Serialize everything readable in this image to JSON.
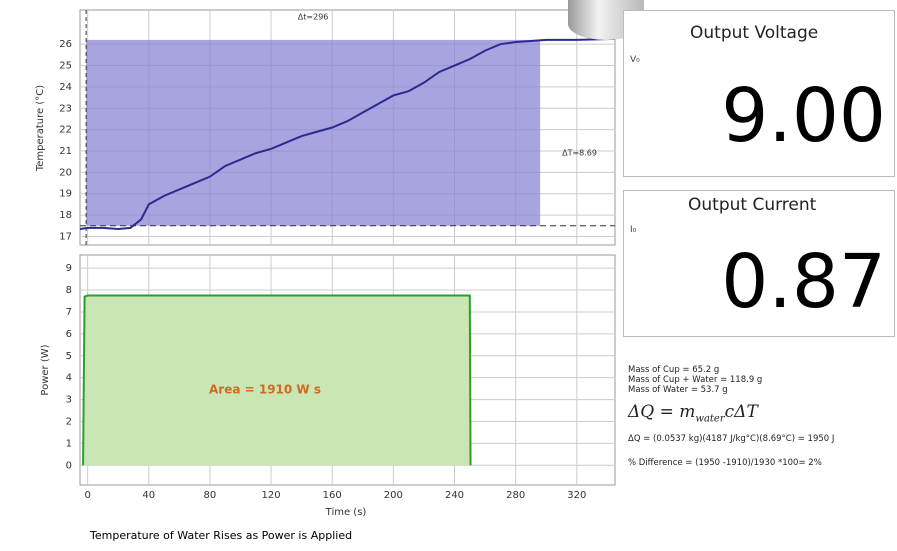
{
  "temperature_chart": {
    "type": "line",
    "y_label": "Temperature (°C)",
    "x": [
      -5,
      0,
      10,
      20,
      28,
      35,
      40,
      50,
      60,
      70,
      80,
      90,
      100,
      110,
      120,
      130,
      140,
      150,
      160,
      170,
      180,
      190,
      200,
      210,
      220,
      230,
      240,
      250,
      260,
      270,
      280,
      290,
      300,
      320,
      345
    ],
    "values": [
      17.35,
      17.4,
      17.4,
      17.35,
      17.4,
      17.8,
      18.5,
      18.9,
      19.2,
      19.5,
      19.8,
      20.3,
      20.6,
      20.9,
      21.1,
      21.4,
      21.7,
      21.9,
      22.1,
      22.4,
      22.8,
      23.2,
      23.6,
      23.8,
      24.2,
      24.7,
      25.0,
      25.3,
      25.7,
      26.0,
      26.1,
      26.15,
      26.2,
      26.2,
      26.25
    ],
    "color": "#2b2b8f",
    "selection_color": "#8a86d6",
    "selection_x": [
      -1,
      296
    ],
    "selection_y": [
      17.5,
      26.2
    ],
    "delta_t_label": "Δt=296",
    "delta_T_label": "ΔT=8.69",
    "ylim": [
      16.6,
      27.6
    ],
    "yticks": [
      17,
      18,
      19,
      20,
      21,
      22,
      23,
      24,
      25,
      26
    ]
  },
  "power_chart": {
    "type": "area",
    "y_label": "Power (W)",
    "x": [
      -3,
      -2,
      0,
      250,
      250.5
    ],
    "values": [
      0,
      7.7,
      7.75,
      7.75,
      0
    ],
    "color": "#2aa02a",
    "fill": "#c9e6b4",
    "area_label": "Area = 1910 W s",
    "ylim": [
      -0.9,
      9.6
    ],
    "yticks": [
      0,
      1,
      2,
      3,
      4,
      5,
      6,
      7,
      8,
      9
    ]
  },
  "x_axis": {
    "label": "Time (s)",
    "xlim": [
      -5,
      345
    ],
    "xticks": [
      0,
      40,
      80,
      120,
      160,
      200,
      240,
      280,
      320
    ]
  },
  "caption": "Temperature of Water Rises as Power is Applied",
  "voltage_panel": {
    "title": "Output Voltage",
    "symbol": "V₀",
    "value": "9.00"
  },
  "current_panel": {
    "title": "Output Current",
    "symbol": "I₀",
    "value": "0.87"
  },
  "notes": {
    "lines": [
      "Mass of Cup = 65.2 g",
      "Mass of Cup + Water = 118.9 g",
      "Mass of Water = 53.7 g"
    ],
    "formula": {
      "lhs": "ΔQ = ",
      "m": "m",
      "sub": "water",
      "rest": "cΔT"
    },
    "calculation": "ΔQ = (0.0537 kg)(4187 J/kg°C)(8.69°C) = 1950 J",
    "difference": "% Difference = (1950 -1910)/1930 *100= 2%"
  }
}
